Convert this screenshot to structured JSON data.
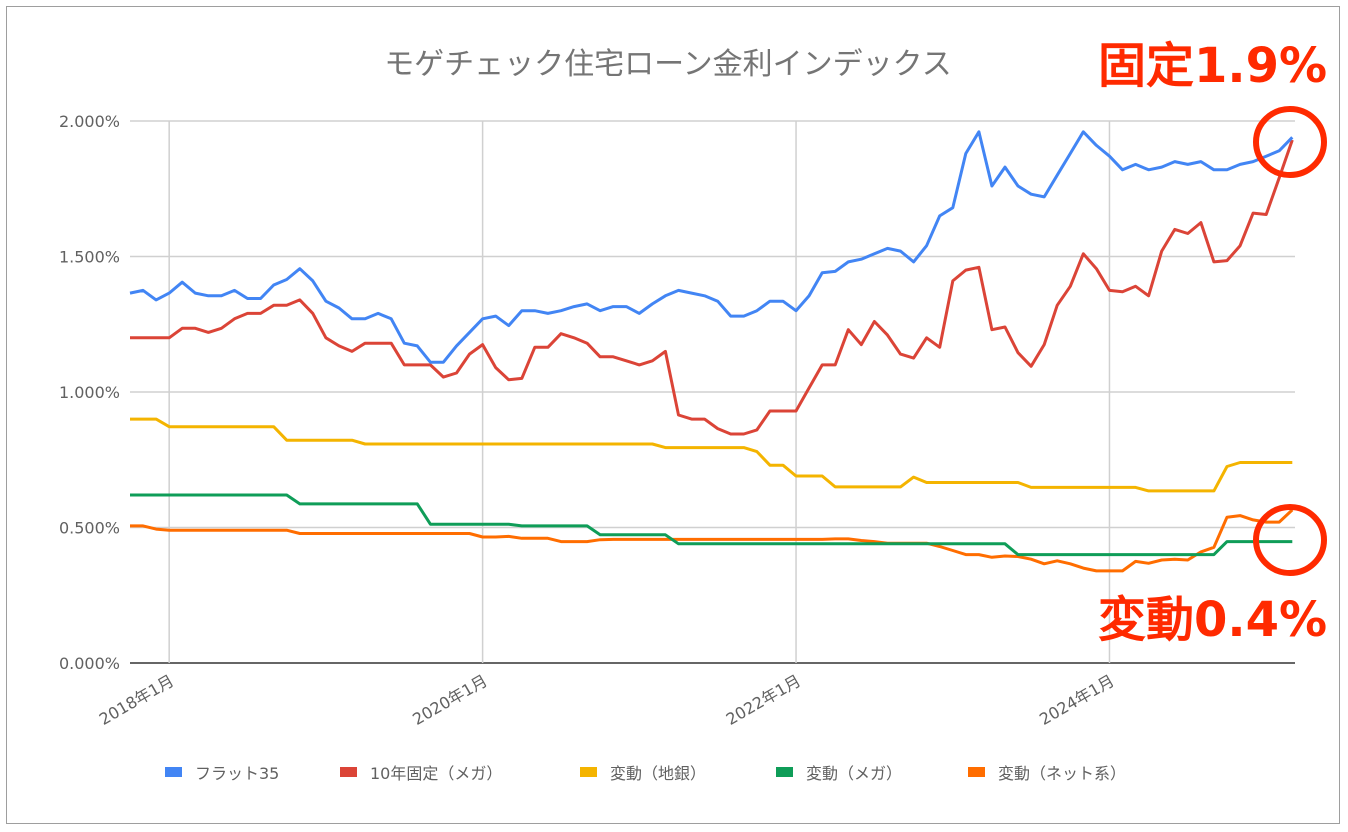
{
  "chart_data": {
    "type": "line",
    "title": "モゲチェック住宅ローン金利インデックス",
    "xlabel": "",
    "ylabel": "",
    "ylim": [
      0,
      2.0
    ],
    "y_unit": "%",
    "y_ticks": [
      "0.000%",
      "0.500%",
      "1.000%",
      "1.500%",
      "2.000%"
    ],
    "x_ticks": [
      "2018年1月",
      "2020年1月",
      "2022年1月",
      "2024年1月"
    ],
    "grid": true,
    "legend_position": "bottom",
    "x": [
      "2017-10",
      "2017-11",
      "2017-12",
      "2018-01",
      "2018-02",
      "2018-03",
      "2018-04",
      "2018-05",
      "2018-06",
      "2018-07",
      "2018-08",
      "2018-09",
      "2018-10",
      "2018-11",
      "2018-12",
      "2019-01",
      "2019-02",
      "2019-03",
      "2019-04",
      "2019-05",
      "2019-06",
      "2019-07",
      "2019-08",
      "2019-09",
      "2019-10",
      "2019-11",
      "2019-12",
      "2020-01",
      "2020-02",
      "2020-03",
      "2020-04",
      "2020-05",
      "2020-06",
      "2020-07",
      "2020-08",
      "2020-09",
      "2020-10",
      "2020-11",
      "2020-12",
      "2021-01",
      "2021-02",
      "2021-03",
      "2021-04",
      "2021-05",
      "2021-06",
      "2021-07",
      "2021-08",
      "2021-09",
      "2021-10",
      "2021-11",
      "2021-12",
      "2022-01",
      "2022-02",
      "2022-03",
      "2022-04",
      "2022-05",
      "2022-06",
      "2022-07",
      "2022-08",
      "2022-09",
      "2022-10",
      "2022-11",
      "2022-12",
      "2023-01",
      "2023-02",
      "2023-03",
      "2023-04",
      "2023-05",
      "2023-06",
      "2023-07",
      "2023-08",
      "2023-09",
      "2023-10",
      "2023-11",
      "2023-12",
      "2024-01",
      "2024-02",
      "2024-03",
      "2024-04",
      "2024-05",
      "2024-06",
      "2024-07",
      "2024-08",
      "2024-09",
      "2024-10",
      "2024-11",
      "2024-12",
      "2025-01",
      "2025-02",
      "2025-03"
    ],
    "series": [
      {
        "name": "フラット35",
        "color": "#4285F4",
        "values": [
          1.365,
          1.375,
          1.34,
          1.365,
          1.405,
          1.365,
          1.355,
          1.355,
          1.375,
          1.345,
          1.345,
          1.395,
          1.415,
          1.455,
          1.41,
          1.335,
          1.31,
          1.27,
          1.27,
          1.29,
          1.27,
          1.18,
          1.17,
          1.11,
          1.11,
          1.17,
          1.22,
          1.27,
          1.28,
          1.245,
          1.3,
          1.3,
          1.29,
          1.3,
          1.315,
          1.325,
          1.3,
          1.315,
          1.315,
          1.29,
          1.325,
          1.355,
          1.375,
          1.365,
          1.355,
          1.335,
          1.28,
          1.28,
          1.3,
          1.335,
          1.335,
          1.3,
          1.355,
          1.44,
          1.445,
          1.48,
          1.49,
          1.51,
          1.53,
          1.52,
          1.48,
          1.54,
          1.65,
          1.68,
          1.88,
          1.96,
          1.76,
          1.83,
          1.76,
          1.73,
          1.72,
          1.8,
          1.88,
          1.96,
          1.91,
          1.87,
          1.82,
          1.84,
          1.82,
          1.83,
          1.85,
          1.84,
          1.85,
          1.82,
          1.82,
          1.84,
          1.85,
          1.87,
          1.89,
          1.94
        ]
      },
      {
        "name": "10年固定（メガ）",
        "color": "#DB4437",
        "values": [
          1.2,
          1.2,
          1.2,
          1.2,
          1.235,
          1.235,
          1.22,
          1.235,
          1.27,
          1.29,
          1.29,
          1.32,
          1.32,
          1.34,
          1.29,
          1.2,
          1.17,
          1.15,
          1.18,
          1.18,
          1.18,
          1.1,
          1.1,
          1.1,
          1.055,
          1.07,
          1.14,
          1.175,
          1.09,
          1.045,
          1.05,
          1.165,
          1.165,
          1.215,
          1.2,
          1.18,
          1.13,
          1.13,
          1.115,
          1.1,
          1.115,
          1.15,
          0.915,
          0.9,
          0.9,
          0.865,
          0.845,
          0.845,
          0.86,
          0.93,
          0.93,
          0.93,
          1.015,
          1.1,
          1.1,
          1.23,
          1.175,
          1.26,
          1.21,
          1.14,
          1.125,
          1.2,
          1.165,
          1.41,
          1.45,
          1.46,
          1.23,
          1.24,
          1.145,
          1.095,
          1.175,
          1.32,
          1.39,
          1.51,
          1.455,
          1.375,
          1.37,
          1.39,
          1.355,
          1.52,
          1.6,
          1.585,
          1.625,
          1.48,
          1.485,
          1.54,
          1.66,
          1.655,
          1.79,
          1.93
        ]
      },
      {
        "name": "変動（地銀）",
        "color": "#F4B400",
        "values": [
          0.9,
          0.9,
          0.9,
          0.872,
          0.872,
          0.872,
          0.872,
          0.872,
          0.872,
          0.872,
          0.872,
          0.872,
          0.822,
          0.822,
          0.822,
          0.822,
          0.822,
          0.822,
          0.808,
          0.808,
          0.808,
          0.808,
          0.808,
          0.808,
          0.808,
          0.808,
          0.808,
          0.808,
          0.808,
          0.808,
          0.808,
          0.808,
          0.808,
          0.808,
          0.808,
          0.808,
          0.808,
          0.808,
          0.808,
          0.808,
          0.808,
          0.795,
          0.795,
          0.795,
          0.795,
          0.795,
          0.795,
          0.795,
          0.78,
          0.73,
          0.73,
          0.69,
          0.69,
          0.69,
          0.65,
          0.65,
          0.65,
          0.65,
          0.65,
          0.65,
          0.686,
          0.666,
          0.666,
          0.666,
          0.666,
          0.666,
          0.666,
          0.666,
          0.666,
          0.648,
          0.648,
          0.648,
          0.648,
          0.648,
          0.648,
          0.648,
          0.648,
          0.648,
          0.635,
          0.635,
          0.635,
          0.635,
          0.635,
          0.635,
          0.725,
          0.74,
          0.74,
          0.74,
          0.74,
          0.74
        ]
      },
      {
        "name": "変動（メガ）",
        "color": "#0F9D58",
        "values": [
          0.62,
          0.62,
          0.62,
          0.62,
          0.62,
          0.62,
          0.62,
          0.62,
          0.62,
          0.62,
          0.62,
          0.62,
          0.62,
          0.587,
          0.587,
          0.587,
          0.587,
          0.587,
          0.587,
          0.587,
          0.587,
          0.587,
          0.587,
          0.512,
          0.512,
          0.512,
          0.512,
          0.512,
          0.512,
          0.512,
          0.506,
          0.506,
          0.506,
          0.506,
          0.506,
          0.506,
          0.473,
          0.473,
          0.473,
          0.473,
          0.473,
          0.473,
          0.44,
          0.44,
          0.44,
          0.44,
          0.44,
          0.44,
          0.44,
          0.44,
          0.44,
          0.44,
          0.44,
          0.44,
          0.44,
          0.44,
          0.44,
          0.44,
          0.44,
          0.44,
          0.44,
          0.44,
          0.44,
          0.44,
          0.44,
          0.44,
          0.44,
          0.44,
          0.4,
          0.4,
          0.4,
          0.4,
          0.4,
          0.4,
          0.4,
          0.4,
          0.4,
          0.4,
          0.4,
          0.4,
          0.4,
          0.4,
          0.4,
          0.4,
          0.448,
          0.448,
          0.448,
          0.448,
          0.448,
          0.448
        ]
      },
      {
        "name": "変動（ネット系）",
        "color": "#FF6D00",
        "values": [
          0.506,
          0.506,
          0.494,
          0.49,
          0.49,
          0.49,
          0.49,
          0.49,
          0.49,
          0.49,
          0.49,
          0.49,
          0.49,
          0.478,
          0.478,
          0.478,
          0.478,
          0.478,
          0.478,
          0.478,
          0.478,
          0.478,
          0.478,
          0.478,
          0.478,
          0.478,
          0.478,
          0.465,
          0.465,
          0.467,
          0.46,
          0.46,
          0.46,
          0.448,
          0.448,
          0.448,
          0.455,
          0.456,
          0.456,
          0.456,
          0.456,
          0.456,
          0.456,
          0.456,
          0.456,
          0.456,
          0.456,
          0.456,
          0.456,
          0.456,
          0.456,
          0.456,
          0.456,
          0.456,
          0.458,
          0.458,
          0.452,
          0.448,
          0.442,
          0.442,
          0.442,
          0.442,
          0.43,
          0.415,
          0.4,
          0.4,
          0.39,
          0.395,
          0.393,
          0.383,
          0.366,
          0.377,
          0.366,
          0.35,
          0.34,
          0.34,
          0.34,
          0.375,
          0.368,
          0.38,
          0.383,
          0.38,
          0.41,
          0.427,
          0.538,
          0.544,
          0.528,
          0.52,
          0.52,
          0.565
        ]
      }
    ],
    "annotations": [
      {
        "text": "固定1.9%",
        "color": "#FF2A00"
      },
      {
        "text": "変動0.4%",
        "color": "#FF2A00"
      }
    ]
  }
}
